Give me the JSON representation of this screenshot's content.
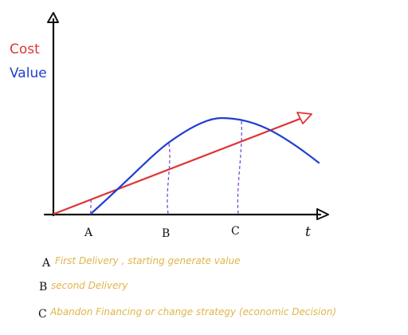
{
  "legend": {
    "cost_label": "Cost",
    "value_label": "Value"
  },
  "axis": {
    "x_label": "t"
  },
  "points": [
    {
      "letter": "A",
      "description": "First Delivery , starting generate value"
    },
    {
      "letter": "B",
      "description": "second Delivery"
    },
    {
      "letter": "C",
      "description": "Abandon Financing or change strategy (economic Decision)"
    }
  ],
  "colors": {
    "cost": "#e03434",
    "value": "#1f3fd1",
    "marker": "#7b4fd0",
    "notes": "#e0b54a",
    "axis": "#111111"
  }
}
